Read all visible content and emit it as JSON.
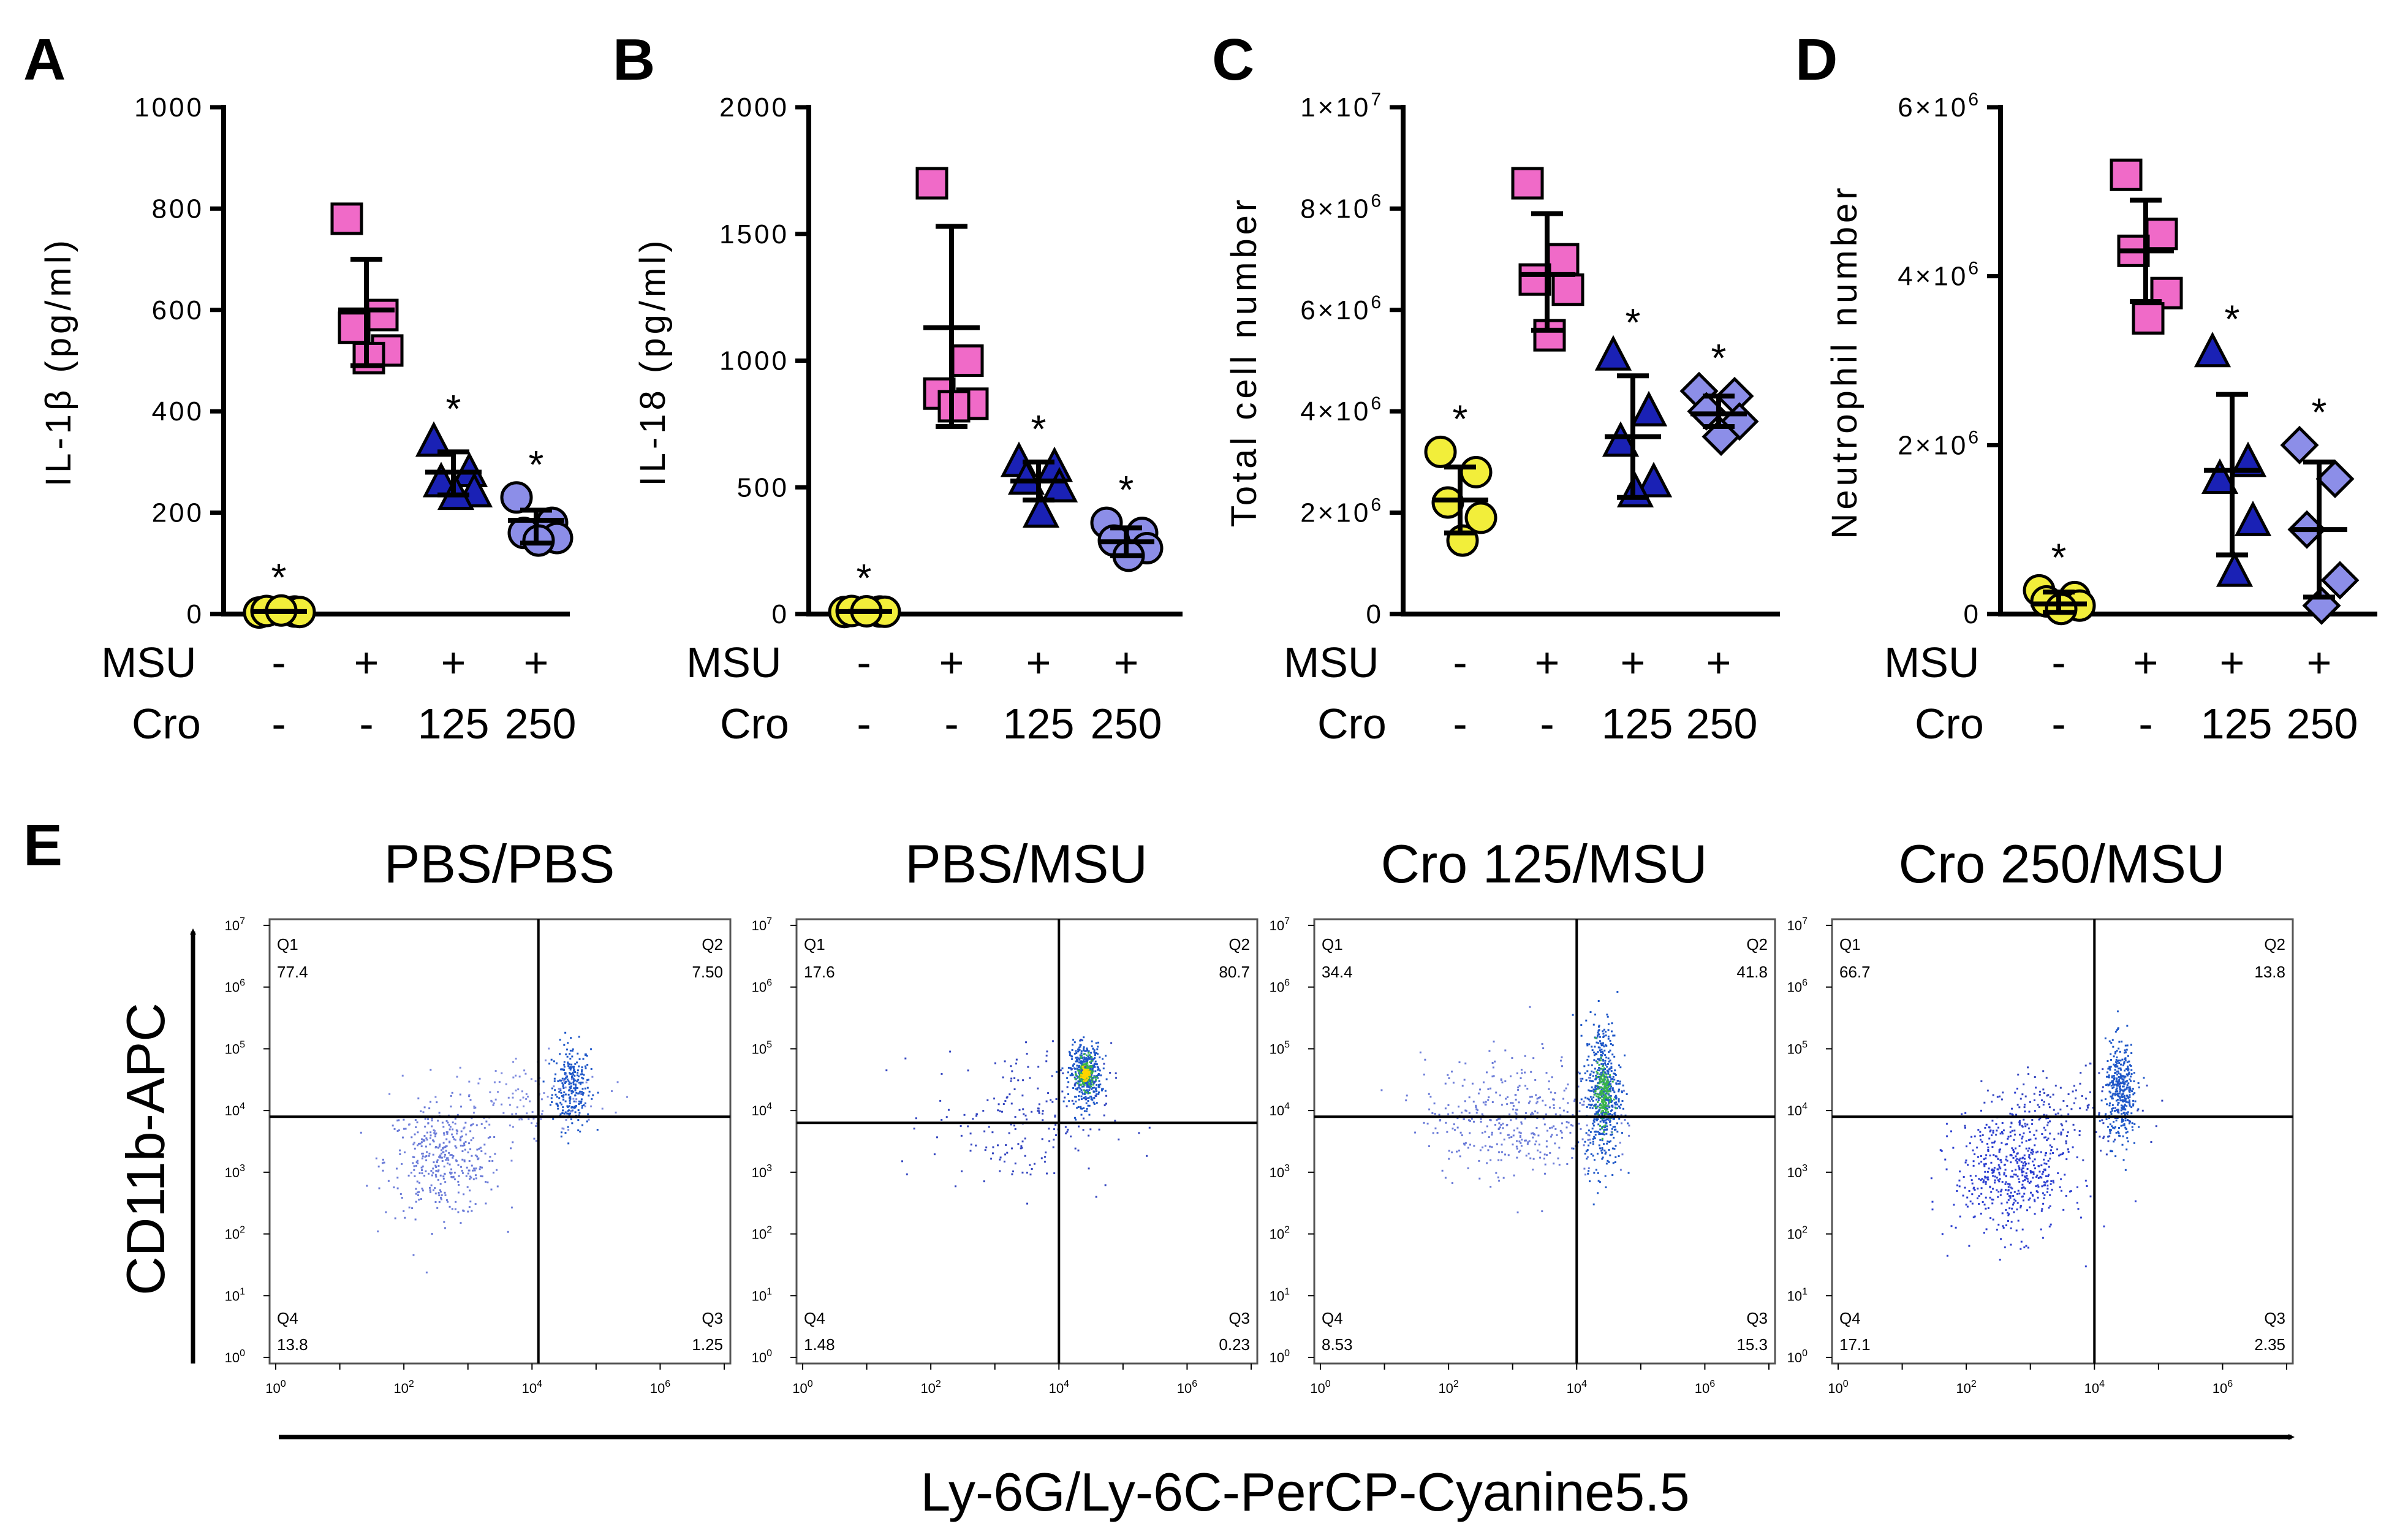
{
  "chart_data": [
    {
      "type": "scatter",
      "panel": "A",
      "ylabel": "IL-1β (pg/ml)",
      "ylim": [
        0,
        1000
      ],
      "yticks": [
        0,
        200,
        400,
        600,
        800,
        1000
      ],
      "ytick_labels": [
        "0",
        "200",
        "400",
        "600",
        "800",
        "1000"
      ],
      "groups": [
        {
          "name": "PBS/PBS",
          "color": "#f2ee3a",
          "marker": "circle",
          "mean": 5,
          "sd_low": 5,
          "sd_high": 5,
          "star": true,
          "points": [
            3,
            5,
            6,
            4,
            7
          ]
        },
        {
          "name": "MSU",
          "color": "#f06ac8",
          "marker": "square",
          "mean": 600,
          "sd_low": 490,
          "sd_high": 700,
          "star": false,
          "points": [
            780,
            590,
            565,
            520,
            505
          ]
        },
        {
          "name": "MSU+Cro125",
          "color": "#1a21b5",
          "marker": "triangle",
          "mean": 280,
          "sd_low": 235,
          "sd_high": 320,
          "star": true,
          "points": [
            340,
            280,
            260,
            240,
            235
          ]
        },
        {
          "name": "MSU+Cro250",
          "color": "#8c8ee8",
          "marker": "circle",
          "mean": 185,
          "sd_low": 140,
          "sd_high": 205,
          "star": true,
          "points": [
            230,
            180,
            160,
            150,
            145
          ]
        }
      ]
    },
    {
      "type": "scatter",
      "panel": "B",
      "ylabel": "IL-18 (pg/ml)",
      "ylim": [
        0,
        2000
      ],
      "yticks": [
        0,
        500,
        1000,
        1500,
        2000
      ],
      "ytick_labels": [
        "0",
        "500",
        "1000",
        "1500",
        "2000"
      ],
      "groups": [
        {
          "name": "PBS/PBS",
          "color": "#f2ee3a",
          "marker": "circle",
          "mean": 10,
          "sd_low": 10,
          "sd_high": 10,
          "star": true,
          "points": [
            8,
            10,
            12,
            9,
            11
          ]
        },
        {
          "name": "MSU",
          "color": "#f06ac8",
          "marker": "square",
          "mean": 1130,
          "sd_low": 740,
          "sd_high": 1530,
          "star": false,
          "points": [
            1700,
            1000,
            870,
            830,
            820
          ]
        },
        {
          "name": "MSU+Cro125",
          "color": "#1a21b5",
          "marker": "triangle",
          "mean": 525,
          "sd_low": 450,
          "sd_high": 600,
          "star": true,
          "points": [
            600,
            580,
            530,
            500,
            400
          ]
        },
        {
          "name": "MSU+Cro250",
          "color": "#8c8ee8",
          "marker": "circle",
          "mean": 285,
          "sd_low": 230,
          "sd_high": 340,
          "star": true,
          "points": [
            360,
            320,
            290,
            260,
            230
          ]
        }
      ]
    },
    {
      "type": "scatter",
      "panel": "C",
      "ylabel": "Total cell number",
      "ylim": [
        0,
        10000000
      ],
      "yticks": [
        2000000,
        4000000,
        6000000,
        8000000,
        10000000
      ],
      "ytick_labels": [
        {
          "m": "2×10",
          "e": "6"
        },
        {
          "m": "4×10",
          "e": "6"
        },
        {
          "m": "6×10",
          "e": "6"
        },
        {
          "m": "8×10",
          "e": "6"
        },
        {
          "m": "1×10",
          "e": "7"
        }
      ],
      "groups": [
        {
          "name": "PBS/PBS",
          "color": "#f2ee3a",
          "marker": "circle",
          "mean": 2250000,
          "sd_low": 1600000,
          "sd_high": 2900000,
          "star": true,
          "points": [
            3200000,
            2800000,
            2200000,
            1900000,
            1450000
          ]
        },
        {
          "name": "MSU",
          "color": "#f06ac8",
          "marker": "square",
          "mean": 6700000,
          "sd_low": 5600000,
          "sd_high": 7900000,
          "star": false,
          "points": [
            8500000,
            7000000,
            6600000,
            6400000,
            5500000
          ]
        },
        {
          "name": "MSU+Cro125",
          "color": "#1a21b5",
          "marker": "triangle",
          "mean": 3500000,
          "sd_low": 2300000,
          "sd_high": 4700000,
          "star": true,
          "points": [
            5100000,
            4000000,
            3400000,
            2600000,
            2400000
          ]
        },
        {
          "name": "MSU+Cro250",
          "color": "#8c8ee8",
          "marker": "diamond",
          "mean": 3950000,
          "sd_low": 3700000,
          "sd_high": 4300000,
          "star": true,
          "points": [
            4400000,
            4300000,
            4000000,
            3800000,
            3500000
          ]
        }
      ]
    },
    {
      "type": "scatter",
      "panel": "D",
      "ylabel": "Neutrophil number",
      "ylim": [
        0,
        6000000
      ],
      "yticks": [
        2000000,
        4000000,
        6000000
      ],
      "ytick_labels": [
        {
          "m": "2×10",
          "e": "6"
        },
        {
          "m": "4×10",
          "e": "6"
        },
        {
          "m": "6×10",
          "e": "6"
        }
      ],
      "groups": [
        {
          "name": "PBS/PBS",
          "color": "#f2ee3a",
          "marker": "circle",
          "mean": 120000,
          "sd_low": 20000,
          "sd_high": 260000,
          "star": true,
          "points": [
            280000,
            200000,
            150000,
            100000,
            60000
          ]
        },
        {
          "name": "MSU",
          "color": "#f06ac8",
          "marker": "square",
          "mean": 4300000,
          "sd_low": 3700000,
          "sd_high": 4900000,
          "star": false,
          "points": [
            5200000,
            4500000,
            4300000,
            3800000,
            3500000
          ]
        },
        {
          "name": "MSU+Cro125",
          "color": "#1a21b5",
          "marker": "triangle",
          "mean": 1700000,
          "sd_low": 700000,
          "sd_high": 2600000,
          "star": true,
          "points": [
            3100000,
            1800000,
            1600000,
            1100000,
            500000
          ]
        },
        {
          "name": "MSU+Cro250",
          "color": "#8c8ee8",
          "marker": "diamond",
          "mean": 1000000,
          "sd_low": 200000,
          "sd_high": 1800000,
          "star": true,
          "points": [
            2000000,
            1600000,
            1000000,
            400000,
            100000
          ]
        }
      ]
    },
    {
      "type": "scatter",
      "panel": "E",
      "subtype": "flow-cytometry",
      "xlabel": "Ly-6G/Ly-6C-PerCP-Cyanine5.5",
      "ylabel": "CD11b-APC",
      "log_ticks": [
        "10",
        "10",
        "10",
        "10",
        "10",
        "10",
        "10",
        "10"
      ],
      "log_exps": [
        "0",
        "1",
        "2",
        "3",
        "4",
        "5",
        "6",
        "7"
      ],
      "x_tick_exps": [
        "0",
        "2",
        "4",
        "6"
      ],
      "plots": [
        {
          "title": "PBS/PBS",
          "Q1": "77.4",
          "Q2": "7.50",
          "Q3": "1.25",
          "Q4": "13.8",
          "gate_x": 4.1,
          "gate_y": 3.9
        },
        {
          "title": "PBS/MSU",
          "Q1": "17.6",
          "Q2": "80.7",
          "Q3": "0.23",
          "Q4": "1.48",
          "gate_x": 4.0,
          "gate_y": 3.8
        },
        {
          "title": "Cro 125/MSU",
          "Q1": "34.4",
          "Q2": "41.8",
          "Q3": "15.3",
          "Q4": "8.53",
          "gate_x": 4.0,
          "gate_y": 3.9
        },
        {
          "title": "Cro 250/MSU",
          "Q1": "66.7",
          "Q2": "13.8",
          "Q3": "2.35",
          "Q4": "17.1",
          "gate_x": 4.0,
          "gate_y": 3.9
        }
      ]
    }
  ],
  "panel_labels": [
    "A",
    "B",
    "C",
    "D",
    "E"
  ],
  "conditions": {
    "msu_label": "MSU",
    "cro_label": "Cro",
    "msu_values": [
      "-",
      "+",
      "+",
      "+"
    ],
    "cro_values": [
      "-",
      "-",
      "125",
      "250"
    ]
  },
  "significance_marker": "*",
  "quadrant_names": [
    "Q1",
    "Q2",
    "Q3",
    "Q4"
  ]
}
